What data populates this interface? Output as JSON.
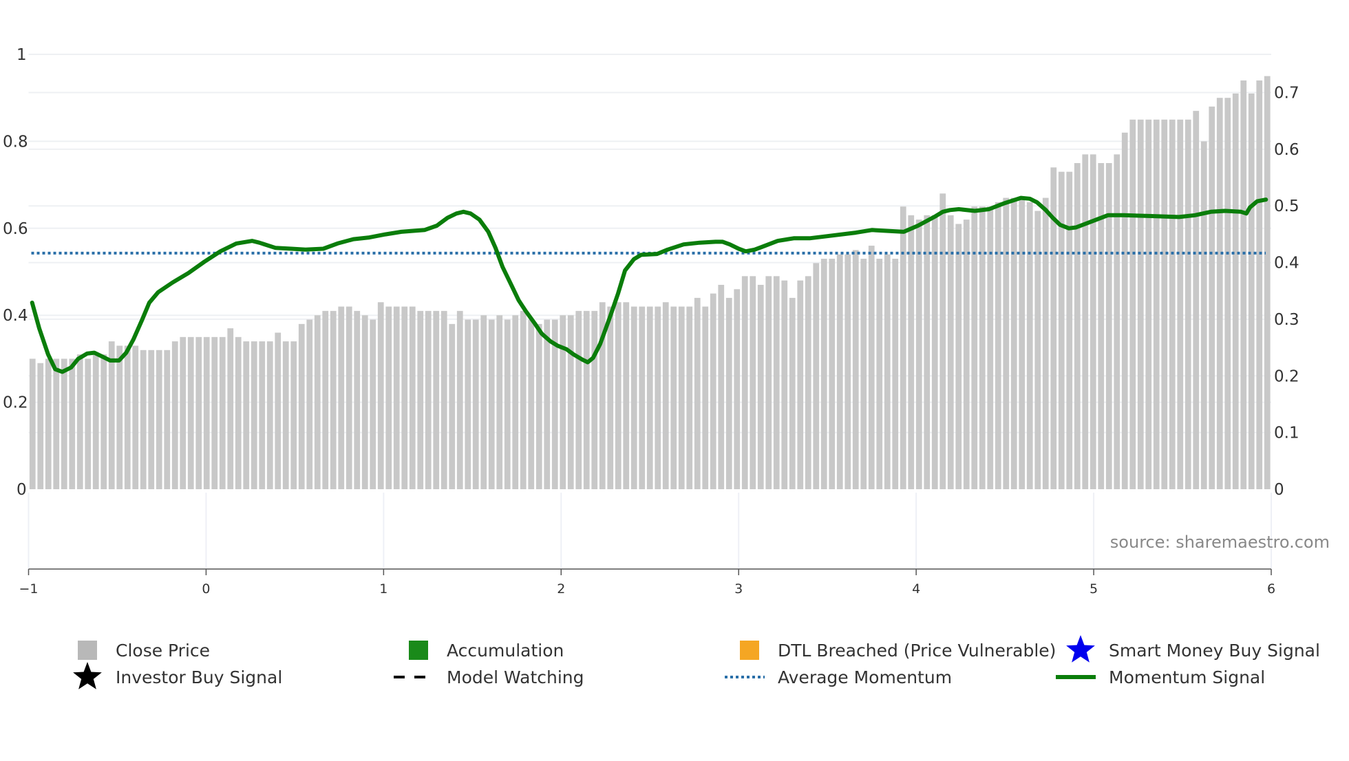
{
  "chart_data": {
    "type": "bar",
    "title": "",
    "xlabel": "",
    "ylabel": "",
    "xlim": [
      -1,
      6
    ],
    "ylim_left": [
      0,
      1
    ],
    "ylim_right": [
      0,
      0.7
    ],
    "x_ticks": [
      "−1",
      "0",
      "1",
      "2",
      "3",
      "4",
      "5",
      "6"
    ],
    "x_tick_values": [
      -1,
      0,
      1,
      2,
      3,
      4,
      5,
      6
    ],
    "y_left_ticks": [
      "0",
      "0.2",
      "0.4",
      "0.6",
      "0.8",
      "1"
    ],
    "y_left_tick_values": [
      0,
      0.2,
      0.4,
      0.6,
      0.8,
      1
    ],
    "y_right_ticks": [
      "0",
      "0.1",
      "0.2",
      "0.3",
      "0.4",
      "0.5",
      "0.6",
      "0.7"
    ],
    "y_right_tick_values": [
      0,
      0.1,
      0.2,
      0.3,
      0.4,
      0.5,
      0.6,
      0.7
    ],
    "grid": true,
    "legend_placement": "bottom",
    "source_text": "source: sharemaestro.com",
    "series": [
      {
        "name": "Close Price",
        "type": "bar",
        "axis": "left",
        "color": "#c8c8c8",
        "values": [
          0.3,
          0.29,
          0.3,
          0.3,
          0.3,
          0.3,
          0.31,
          0.3,
          0.31,
          0.31,
          0.34,
          0.33,
          0.33,
          0.33,
          0.32,
          0.32,
          0.32,
          0.32,
          0.34,
          0.35,
          0.35,
          0.35,
          0.35,
          0.35,
          0.35,
          0.37,
          0.35,
          0.34,
          0.34,
          0.34,
          0.34,
          0.36,
          0.34,
          0.34,
          0.38,
          0.39,
          0.4,
          0.41,
          0.41,
          0.42,
          0.42,
          0.41,
          0.4,
          0.39,
          0.43,
          0.42,
          0.42,
          0.42,
          0.42,
          0.41,
          0.41,
          0.41,
          0.41,
          0.38,
          0.41,
          0.39,
          0.39,
          0.4,
          0.39,
          0.4,
          0.39,
          0.4,
          0.41,
          0.39,
          0.38,
          0.39,
          0.39,
          0.4,
          0.4,
          0.41,
          0.41,
          0.41,
          0.43,
          0.42,
          0.43,
          0.43,
          0.42,
          0.42,
          0.42,
          0.42,
          0.43,
          0.42,
          0.42,
          0.42,
          0.44,
          0.42,
          0.45,
          0.47,
          0.44,
          0.46,
          0.49,
          0.49,
          0.47,
          0.49,
          0.49,
          0.48,
          0.44,
          0.48,
          0.49,
          0.52,
          0.53,
          0.53,
          0.54,
          0.54,
          0.55,
          0.53,
          0.56,
          0.53,
          0.54,
          0.53,
          0.65,
          0.63,
          0.62,
          0.63,
          0.63,
          0.68,
          0.63,
          0.61,
          0.62,
          0.65,
          0.65,
          0.65,
          0.66,
          0.67,
          0.67,
          0.67,
          0.66,
          0.64,
          0.67,
          0.74,
          0.73,
          0.73,
          0.75,
          0.77,
          0.77,
          0.75,
          0.75,
          0.77,
          0.82,
          0.85,
          0.85,
          0.85,
          0.85,
          0.85,
          0.85,
          0.85,
          0.85,
          0.87,
          0.8,
          0.88,
          0.9,
          0.9,
          0.91,
          0.94,
          0.91,
          0.94,
          0.95
        ]
      },
      {
        "name": "Momentum Signal",
        "type": "line",
        "axis": "left",
        "color": "#0a7d0a",
        "x": [
          -0.98,
          -0.94,
          -0.89,
          -0.85,
          -0.81,
          -0.76,
          -0.72,
          -0.67,
          -0.63,
          -0.59,
          -0.54,
          -0.49,
          -0.45,
          -0.41,
          -0.36,
          -0.32,
          -0.27,
          -0.19,
          -0.1,
          -0.01,
          0.08,
          0.17,
          0.26,
          0.3,
          0.39,
          0.48,
          0.56,
          0.66,
          0.74,
          0.83,
          0.92,
          1.01,
          1.1,
          1.23,
          1.3,
          1.36,
          1.41,
          1.45,
          1.49,
          1.54,
          1.59,
          1.63,
          1.67,
          1.72,
          1.76,
          1.8,
          1.85,
          1.89,
          1.94,
          1.98,
          2.03,
          2.07,
          2.12,
          2.15,
          2.18,
          2.22,
          2.27,
          2.32,
          2.36,
          2.41,
          2.45,
          2.54,
          2.6,
          2.69,
          2.78,
          2.87,
          2.91,
          2.95,
          3.0,
          3.04,
          3.09,
          3.13,
          3.22,
          3.31,
          3.4,
          3.48,
          3.66,
          3.75,
          3.84,
          3.93,
          4.01,
          4.11,
          4.15,
          4.19,
          4.24,
          4.33,
          4.41,
          4.5,
          4.59,
          4.64,
          4.68,
          4.73,
          4.77,
          4.81,
          4.86,
          4.9,
          4.99,
          5.08,
          5.17,
          5.34,
          5.48,
          5.57,
          5.66,
          5.74,
          5.83,
          5.86,
          5.88,
          5.92,
          5.97
        ],
        "y": [
          0.429,
          0.37,
          0.31,
          0.276,
          0.27,
          0.28,
          0.3,
          0.312,
          0.314,
          0.306,
          0.296,
          0.296,
          0.314,
          0.344,
          0.39,
          0.429,
          0.453,
          0.475,
          0.497,
          0.523,
          0.547,
          0.565,
          0.571,
          0.567,
          0.555,
          0.553,
          0.551,
          0.553,
          0.565,
          0.575,
          0.579,
          0.586,
          0.592,
          0.596,
          0.606,
          0.624,
          0.634,
          0.638,
          0.634,
          0.62,
          0.592,
          0.555,
          0.511,
          0.469,
          0.435,
          0.41,
          0.382,
          0.358,
          0.34,
          0.33,
          0.322,
          0.31,
          0.298,
          0.292,
          0.302,
          0.334,
          0.39,
          0.449,
          0.503,
          0.529,
          0.539,
          0.541,
          0.551,
          0.563,
          0.567,
          0.569,
          0.569,
          0.563,
          0.553,
          0.547,
          0.551,
          0.557,
          0.571,
          0.577,
          0.577,
          0.581,
          0.59,
          0.596,
          0.594,
          0.592,
          0.606,
          0.628,
          0.638,
          0.642,
          0.644,
          0.64,
          0.644,
          0.658,
          0.67,
          0.668,
          0.66,
          0.642,
          0.624,
          0.608,
          0.6,
          0.602,
          0.616,
          0.63,
          0.63,
          0.628,
          0.626,
          0.63,
          0.638,
          0.64,
          0.638,
          0.634,
          0.648,
          0.662,
          0.666
        ]
      },
      {
        "name": "Average Momentum",
        "type": "hline",
        "axis": "left",
        "color": "#2a6fa8",
        "value": 0.543
      }
    ],
    "legend": [
      {
        "label": "Close Price",
        "marker": "square",
        "color": "#b8b8b8"
      },
      {
        "label": "Accumulation",
        "marker": "square",
        "color": "#1a8a1a"
      },
      {
        "label": "DTL Breached (Price Vulnerable)",
        "marker": "square",
        "color": "#f5a623"
      },
      {
        "label": "Smart Money Buy Signal",
        "marker": "star",
        "color": "#0000ee"
      },
      {
        "label": "Investor Buy Signal",
        "marker": "star",
        "color": "#000000"
      },
      {
        "label": "Model Watching",
        "marker": "dash",
        "color": "#000000"
      },
      {
        "label": "Average Momentum",
        "marker": "dot",
        "color": "#2a6fa8"
      },
      {
        "label": "Momentum Signal",
        "marker": "line",
        "color": "#0a7d0a"
      }
    ]
  }
}
